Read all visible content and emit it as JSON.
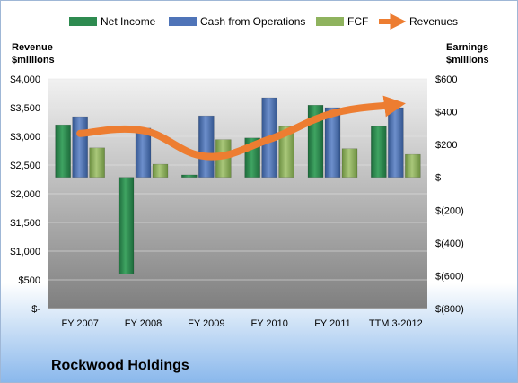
{
  "company_name": "Rockwood Holdings",
  "chart_data": {
    "type": "bar",
    "title": "",
    "categories": [
      "FY 2007",
      "FY 2008",
      "FY 2009",
      "FY 2010",
      "FY 2011",
      "TTM 3-2012"
    ],
    "left_axis": {
      "title_line1": "Revenue",
      "title_line2": "$millions",
      "ylim": [
        0,
        4000
      ],
      "ticks": [
        {
          "value": 4000,
          "label": "$4,000"
        },
        {
          "value": 3500,
          "label": "$3,500"
        },
        {
          "value": 3000,
          "label": "$3,000"
        },
        {
          "value": 2500,
          "label": "$2,500"
        },
        {
          "value": 2000,
          "label": "$2,000"
        },
        {
          "value": 1500,
          "label": "$1,500"
        },
        {
          "value": 1000,
          "label": "$1,000"
        },
        {
          "value": 500,
          "label": "$500"
        },
        {
          "value": 0,
          "label": "$-"
        }
      ]
    },
    "right_axis": {
      "title_line1": "Earnings",
      "title_line2": "$millions",
      "ylim": [
        -800,
        600
      ],
      "ticks": [
        {
          "value": 600,
          "label": "$600"
        },
        {
          "value": 400,
          "label": "$400"
        },
        {
          "value": 200,
          "label": "$200"
        },
        {
          "value": 0,
          "label": "$-"
        },
        {
          "value": -200,
          "label": "$(200)"
        },
        {
          "value": -400,
          "label": "$(400)"
        },
        {
          "value": -600,
          "label": "$(600)"
        },
        {
          "value": -800,
          "label": "$(800)"
        }
      ]
    },
    "series": [
      {
        "name": "Net Income",
        "axis": "right",
        "color": "#2e8b50",
        "values": [
          320,
          -590,
          15,
          240,
          440,
          310
        ]
      },
      {
        "name": "Cash from Operations",
        "axis": "right",
        "color": "#4f74b8",
        "values": [
          370,
          300,
          375,
          485,
          425,
          425
        ]
      },
      {
        "name": "FCF",
        "axis": "right",
        "color": "#8fb35e",
        "values": [
          180,
          80,
          230,
          310,
          175,
          140
        ]
      },
      {
        "name": "Revenues",
        "axis": "left",
        "type": "line",
        "color": "#ed7d31",
        "values": [
          3050,
          3100,
          2650,
          2950,
          3400,
          3550
        ]
      }
    ],
    "grid": true,
    "legend_position": "top"
  }
}
